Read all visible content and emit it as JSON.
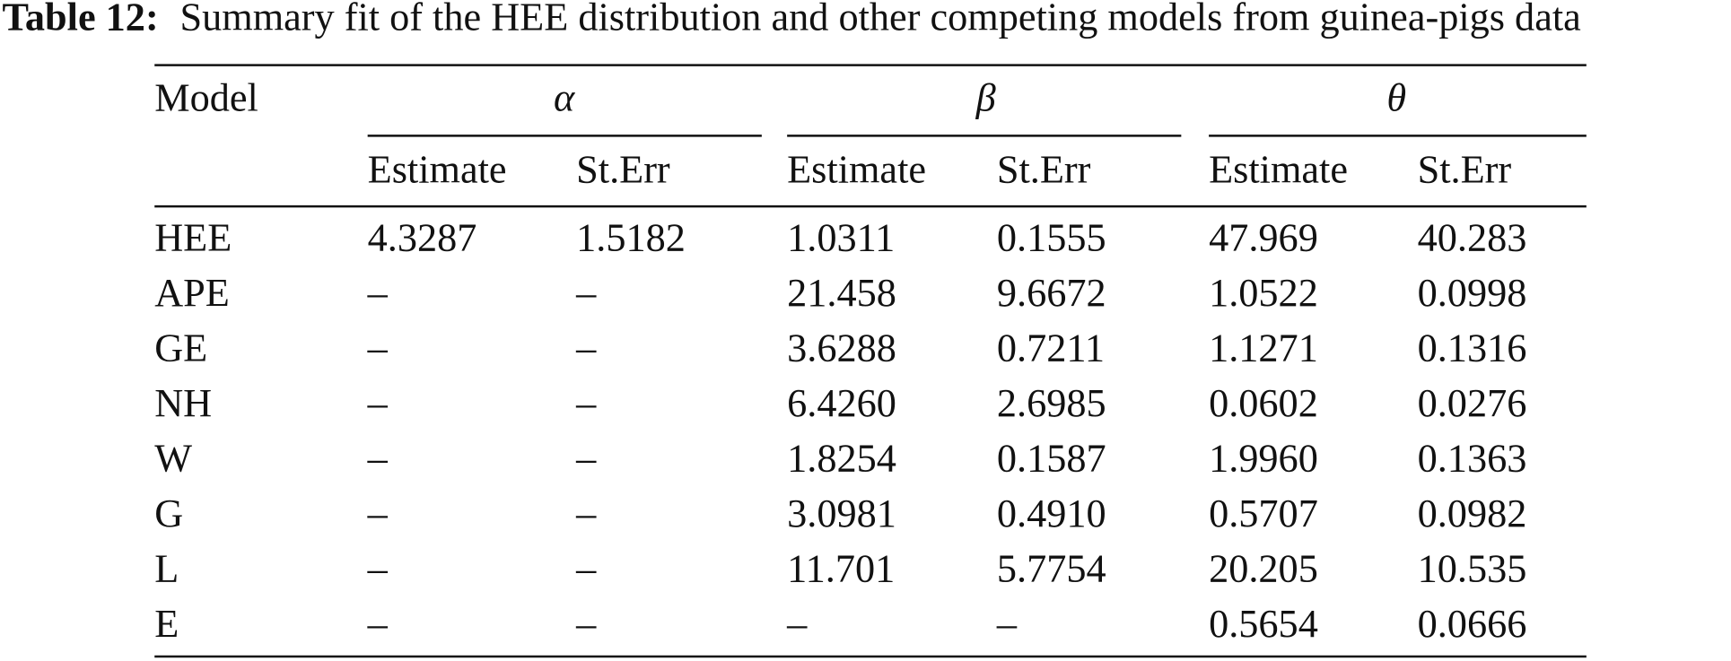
{
  "caption": {
    "label": "Table 12:",
    "text": "Summary fit of the HEE distribution and other competing models from guinea-pigs data"
  },
  "header": {
    "model": "Model",
    "groups": [
      "α",
      "β",
      "θ"
    ],
    "subheaders": [
      "Estimate",
      "St.Err",
      "Estimate",
      "St.Err",
      "Estimate",
      "St.Err"
    ]
  },
  "rows": [
    [
      "HEE",
      "4.3287",
      "1.5182",
      "1.0311",
      "0.1555",
      "47.969",
      "40.283"
    ],
    [
      "APE",
      "–",
      "–",
      "21.458",
      "9.6672",
      "1.0522",
      "0.0998"
    ],
    [
      "GE",
      "–",
      "–",
      "3.6288",
      "0.7211",
      "1.1271",
      "0.1316"
    ],
    [
      "NH",
      "–",
      "–",
      "6.4260",
      "2.6985",
      "0.0602",
      "0.0276"
    ],
    [
      "W",
      "–",
      "–",
      "1.8254",
      "0.1587",
      "1.9960",
      "0.1363"
    ],
    [
      "G",
      "–",
      "–",
      "3.0981",
      "0.4910",
      "0.5707",
      "0.0982"
    ],
    [
      "L",
      "–",
      "–",
      "11.701",
      "5.7754",
      "20.205",
      "10.535"
    ],
    [
      "E",
      "–",
      "–",
      "–",
      "–",
      "0.5654",
      "0.0666"
    ]
  ]
}
